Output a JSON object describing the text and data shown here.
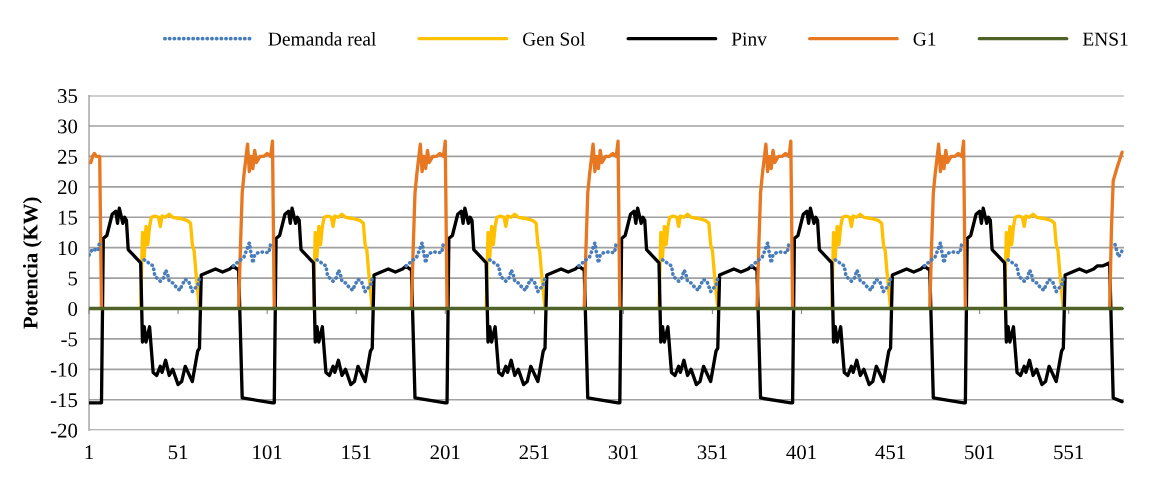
{
  "chart_data": {
    "type": "line",
    "ylabel": "Potencia (KW)",
    "xlim": [
      1,
      582
    ],
    "xticks": [
      1,
      51,
      101,
      151,
      201,
      251,
      301,
      351,
      401,
      451,
      501,
      551
    ],
    "ylim": [
      -20,
      35
    ],
    "yticks": [
      -20,
      -15,
      -10,
      -5,
      0,
      5,
      10,
      15,
      20,
      25,
      30,
      35
    ],
    "grid": "y",
    "legend": "top",
    "series": [
      {
        "name": "Demanda real",
        "color": "#4a7ebb",
        "line_style": "dotted",
        "x": [
          1,
          2,
          3,
          4,
          5,
          6,
          7,
          7.5,
          32,
          35,
          37,
          38,
          41,
          43,
          44,
          45,
          46,
          48,
          50,
          52,
          53,
          55,
          57,
          59,
          61,
          62,
          63,
          70,
          82,
          88,
          90,
          91,
          92,
          93,
          94,
          96,
          98,
          100,
          102,
          103,
          115,
          129,
          132,
          134,
          135,
          138,
          140,
          141,
          142,
          143,
          145,
          147,
          149,
          150,
          152,
          154,
          156,
          158,
          159,
          160,
          170,
          179,
          185,
          187,
          188,
          189,
          190,
          191,
          193,
          195,
          197,
          199,
          200,
          210,
          226,
          229,
          231,
          232,
          235,
          237,
          238,
          239,
          240,
          242,
          244,
          246,
          247,
          249,
          251,
          253,
          255,
          256,
          257,
          270,
          276,
          282,
          284,
          285,
          286,
          287,
          288,
          290,
          292,
          294,
          296,
          297,
          310,
          323,
          326,
          328,
          329,
          332,
          334,
          335,
          336,
          337,
          339,
          341,
          343,
          344,
          346,
          348,
          350,
          352,
          353,
          354,
          365,
          373,
          379,
          381,
          382,
          383,
          384,
          385,
          387,
          389,
          391,
          393,
          394,
          405,
          420,
          423,
          425,
          426,
          429,
          431,
          432,
          433,
          434,
          436,
          438,
          440,
          441,
          443,
          445,
          447,
          449,
          450,
          451,
          460,
          470,
          476,
          478,
          479,
          480,
          481,
          482,
          484,
          486,
          488,
          490,
          491,
          500,
          517,
          520,
          522,
          523,
          526,
          528,
          529,
          530,
          531,
          533,
          535,
          537,
          538,
          540,
          542,
          544,
          546,
          547,
          548,
          560,
          577,
          579,
          581
        ],
        "values": [
          8.8,
          9.3,
          9.8,
          9.7,
          9.6,
          9.5,
          11,
          null,
          8,
          7.4,
          7,
          5.3,
          4.5,
          5.1,
          6.3,
          5.8,
          4.5,
          4.2,
          3.5,
          3,
          3.7,
          4.8,
          4.4,
          2.8,
          3.5,
          3.7,
          5,
          null,
          7,
          8.5,
          10,
          10.8,
          9,
          7.5,
          8.8,
          9.2,
          9.3,
          9.2,
          9.2,
          10.7,
          null,
          8,
          7.4,
          7,
          5.3,
          4.5,
          5.1,
          6.3,
          5.8,
          4.5,
          4.2,
          3.5,
          3,
          3.7,
          4.8,
          4.4,
          2.8,
          3.5,
          3.7,
          5,
          null,
          7,
          8.5,
          10,
          10.8,
          9,
          7.5,
          8.8,
          9.2,
          9.3,
          9.2,
          9.2,
          10.7,
          null,
          8,
          7.4,
          7,
          5.3,
          4.5,
          5.1,
          6.3,
          5.8,
          4.5,
          4.2,
          3.5,
          3,
          3.7,
          4.8,
          4.4,
          2.8,
          3.5,
          3.7,
          5,
          null,
          7,
          8.5,
          10,
          10.8,
          9,
          7.5,
          8.8,
          9.2,
          9.3,
          9.2,
          9.2,
          10.7,
          null,
          8,
          7.4,
          7,
          5.3,
          4.5,
          5.1,
          6.3,
          5.8,
          4.5,
          4.2,
          3.5,
          3,
          3.7,
          4.8,
          4.4,
          2.8,
          3.5,
          3.7,
          5,
          null,
          7,
          8.5,
          10,
          10.8,
          9,
          7.5,
          8.8,
          9.2,
          9.3,
          9.2,
          9.2,
          10.7,
          null,
          8,
          7.4,
          7,
          5.3,
          4.5,
          5.1,
          6.3,
          5.8,
          4.5,
          4.2,
          3.5,
          3,
          3.7,
          4.8,
          4.4,
          2.8,
          3.5,
          3.7,
          5,
          null,
          7,
          8.5,
          10,
          10.8,
          9,
          7.5,
          8.8,
          9.2,
          9.3,
          9.2,
          9.2,
          10.7,
          null,
          8,
          7.4,
          7,
          5.3,
          4.5,
          5.1,
          6.3,
          5.8,
          4.5,
          4.2,
          3.5,
          3,
          3.7,
          4.8,
          4.4,
          2.8,
          3.5,
          3.7,
          5,
          null,
          10.5,
          8.5,
          9.5
        ]
      },
      {
        "name": "Gen Sol",
        "color": "#ffc000",
        "line_style": "solid",
        "x": [
          30,
          31,
          32,
          33,
          34,
          35,
          36,
          38,
          40,
          41,
          42,
          44,
          46,
          48,
          52,
          56,
          58,
          59,
          60,
          61,
          63,
          80,
          127,
          128,
          129,
          130,
          131,
          132,
          133,
          135,
          137,
          138,
          139,
          141,
          143,
          145,
          149,
          153,
          155,
          156,
          157,
          158,
          160,
          180,
          224,
          225,
          226,
          227,
          228,
          229,
          230,
          232,
          234,
          235,
          236,
          238,
          240,
          242,
          246,
          250,
          252,
          253,
          254,
          255,
          257,
          280,
          321,
          322,
          323,
          324,
          325,
          326,
          327,
          329,
          331,
          332,
          333,
          335,
          337,
          339,
          343,
          347,
          349,
          350,
          351,
          352,
          354,
          370,
          418,
          419,
          420,
          421,
          422,
          423,
          424,
          426,
          428,
          429,
          430,
          432,
          434,
          436,
          440,
          444,
          446,
          447,
          448,
          449,
          451,
          470,
          515,
          516,
          517,
          518,
          519,
          520,
          521,
          523,
          525,
          526,
          527,
          529,
          531,
          533,
          537,
          541,
          543,
          544,
          545,
          546,
          548
        ],
        "values": [
          0,
          12.5,
          8.5,
          13.5,
          10.5,
          13.5,
          15,
          15.2,
          15,
          13.5,
          15.2,
          15,
          15.5,
          15,
          14.8,
          14.5,
          14,
          10.5,
          9.5,
          6,
          0,
          null,
          0,
          12.5,
          8.5,
          13.5,
          10.5,
          13.5,
          15,
          15.2,
          15,
          13.5,
          15.2,
          15,
          15.5,
          15,
          14.8,
          14.5,
          14,
          10.5,
          9.5,
          6,
          0,
          null,
          0,
          12.5,
          8.5,
          13.5,
          10.5,
          13.5,
          15,
          15.2,
          15,
          13.5,
          15.2,
          15,
          15.5,
          15,
          14.8,
          14.5,
          14,
          10.5,
          9.5,
          6,
          0,
          null,
          0,
          12.5,
          8.5,
          13.5,
          10.5,
          13.5,
          15,
          15.2,
          15,
          13.5,
          15.2,
          15,
          15.5,
          15,
          14.8,
          14.5,
          14,
          10.5,
          9.5,
          6,
          0,
          null,
          0,
          12.5,
          8.5,
          13.5,
          10.5,
          13.5,
          15,
          15.2,
          15,
          13.5,
          15.2,
          15,
          15.5,
          15,
          14.8,
          14.5,
          14,
          10.5,
          9.5,
          6,
          0,
          null,
          0,
          12.5,
          8.5,
          13.5,
          10.5,
          13.5,
          15,
          15.2,
          15,
          13.5,
          15.2,
          15,
          15.5,
          15,
          14.8,
          14.5,
          14,
          10.5,
          9.5,
          6,
          0
        ]
      },
      {
        "name": "Pinv",
        "color": "#000000",
        "line_style": "solid",
        "x": [
          1,
          8,
          9,
          11,
          14,
          16,
          17,
          18,
          20,
          21,
          22,
          23,
          30,
          31,
          32,
          33,
          35,
          37,
          39,
          41,
          42,
          44,
          46,
          48,
          51,
          53,
          55,
          59,
          62,
          63,
          64,
          68,
          72,
          76,
          80,
          82,
          84,
          85,
          87,
          104,
          105,
          106,
          108,
          111,
          113,
          114,
          115,
          117,
          118,
          119,
          120,
          127,
          128,
          129,
          130,
          132,
          134,
          136,
          138,
          139,
          141,
          143,
          145,
          148,
          150,
          152,
          156,
          159,
          160,
          161,
          165,
          169,
          173,
          177,
          179,
          181,
          182,
          184,
          201,
          202,
          203,
          205,
          208,
          210,
          211,
          212,
          214,
          215,
          216,
          217,
          224,
          225,
          226,
          227,
          229,
          231,
          233,
          235,
          236,
          238,
          240,
          242,
          245,
          247,
          249,
          253,
          256,
          257,
          258,
          262,
          266,
          270,
          274,
          276,
          278,
          279,
          281,
          298,
          299,
          300,
          302,
          305,
          307,
          308,
          309,
          311,
          312,
          313,
          314,
          321,
          322,
          323,
          324,
          326,
          328,
          330,
          332,
          333,
          335,
          337,
          339,
          342,
          344,
          346,
          350,
          353,
          354,
          355,
          359,
          363,
          367,
          371,
          373,
          375,
          376,
          378,
          395,
          396,
          397,
          399,
          402,
          404,
          405,
          406,
          408,
          409,
          410,
          411,
          418,
          419,
          420,
          421,
          423,
          425,
          427,
          429,
          430,
          432,
          434,
          436,
          439,
          441,
          443,
          447,
          450,
          451,
          452,
          456,
          460,
          464,
          468,
          470,
          472,
          473,
          475,
          492,
          493,
          494,
          496,
          499,
          501,
          502,
          503,
          505,
          506,
          507,
          508,
          515,
          516,
          517,
          518,
          520,
          522,
          524,
          526,
          527,
          529,
          531,
          533,
          536,
          538,
          540,
          544,
          547,
          548,
          549,
          553,
          557,
          561,
          565,
          567,
          570,
          574,
          576,
          581
        ],
        "values": [
          -15.5,
          -15.5,
          11.5,
          12,
          15.5,
          16,
          14,
          16.5,
          14,
          15,
          14.5,
          9.7,
          7.5,
          -5.5,
          -3,
          -5.5,
          -3,
          -10.5,
          -11,
          -9.5,
          -10.5,
          -8.5,
          -11,
          -10,
          -12.5,
          -12,
          -9.5,
          -12,
          -7,
          -6.5,
          5.5,
          6,
          6.5,
          6,
          6.5,
          7,
          6.5,
          6.5,
          -14.7,
          -15.5,
          -15.5,
          11.5,
          12,
          15.5,
          16,
          14,
          16.5,
          14,
          15,
          14.5,
          9.7,
          7.5,
          -5.5,
          -3,
          -5.5,
          -3,
          -10.5,
          -11,
          -9.5,
          -10.5,
          -8.5,
          -11,
          -10,
          -12.5,
          -12,
          -9.5,
          -12,
          -7,
          -6.5,
          5.5,
          6,
          6.5,
          6,
          6.5,
          7,
          6.5,
          6.5,
          -14.7,
          -15.5,
          -15.5,
          11.5,
          12,
          15.5,
          16,
          14,
          16.5,
          14,
          15,
          14.5,
          9.7,
          7.5,
          -5.5,
          -3,
          -5.5,
          -3,
          -10.5,
          -11,
          -9.5,
          -10.5,
          -8.5,
          -11,
          -10,
          -12.5,
          -12,
          -9.5,
          -12,
          -7,
          -6.5,
          5.5,
          6,
          6.5,
          6,
          6.5,
          7,
          6.5,
          6.5,
          -14.7,
          -15.5,
          -15.5,
          11.5,
          12,
          15.5,
          16,
          14,
          16.5,
          14,
          15,
          14.5,
          9.7,
          7.5,
          -5.5,
          -3,
          -5.5,
          -3,
          -10.5,
          -11,
          -9.5,
          -10.5,
          -8.5,
          -11,
          -10,
          -12.5,
          -12,
          -9.5,
          -12,
          -7,
          -6.5,
          5.5,
          6,
          6.5,
          6,
          6.5,
          7,
          6.5,
          6.5,
          -14.7,
          -15.5,
          -15.5,
          11.5,
          12,
          15.5,
          16,
          14,
          16.5,
          14,
          15,
          14.5,
          9.7,
          7.5,
          -5.5,
          -3,
          -5.5,
          -3,
          -10.5,
          -11,
          -9.5,
          -10.5,
          -8.5,
          -11,
          -10,
          -12.5,
          -12,
          -9.5,
          -12,
          -7,
          -6.5,
          5.5,
          6,
          6.5,
          6,
          6.5,
          7,
          6.5,
          6.5,
          -14.7,
          -15.5,
          -15.5,
          11.5,
          12,
          15.5,
          16,
          14,
          16.5,
          14,
          15,
          14.5,
          9.7,
          7.5,
          -5.5,
          -3,
          -5.5,
          -3,
          -10.5,
          -11,
          -9.5,
          -10.5,
          -8.5,
          -11,
          -10,
          -12.5,
          -12,
          -9.5,
          -12,
          -7,
          -6.5,
          5.5,
          6,
          6.5,
          6,
          6.5,
          7,
          7,
          7.5,
          -14.7,
          -15.3
        ]
      },
      {
        "name": "G1",
        "color": "#e87722",
        "line_style": "solid",
        "x": [
          1,
          2,
          3,
          4,
          5,
          7,
          8,
          40,
          85,
          86,
          87,
          88,
          90,
          91,
          92,
          93,
          94,
          95,
          97,
          99,
          101,
          103,
          104,
          105,
          140,
          182,
          183,
          184,
          185,
          187,
          188,
          189,
          190,
          191,
          192,
          194,
          196,
          198,
          200,
          201,
          202,
          240,
          279,
          280,
          281,
          282,
          284,
          285,
          286,
          287,
          288,
          289,
          291,
          293,
          295,
          297,
          298,
          299,
          340,
          376,
          377,
          378,
          379,
          381,
          382,
          383,
          384,
          385,
          386,
          388,
          390,
          392,
          394,
          395,
          396,
          440,
          473,
          474,
          475,
          476,
          478,
          479,
          480,
          481,
          482,
          483,
          485,
          487,
          489,
          491,
          492,
          493,
          530,
          574,
          575,
          576,
          578,
          581
        ],
        "values": [
          24,
          24,
          25,
          25.5,
          25,
          25,
          0,
          null,
          0,
          10,
          19,
          22,
          27,
          22.5,
          25,
          23,
          26,
          24,
          25,
          25,
          25.5,
          25,
          27.5,
          0,
          null,
          0,
          10,
          19,
          22,
          27,
          22.5,
          25,
          23,
          26,
          24,
          25,
          25,
          25.5,
          25,
          27.5,
          0,
          null,
          0,
          10,
          19,
          22,
          27,
          22.5,
          25,
          23,
          26,
          24,
          25,
          25,
          25.5,
          25,
          27.5,
          0,
          null,
          0,
          10,
          19,
          22,
          27,
          22.5,
          25,
          23,
          26,
          24,
          25,
          25,
          25.5,
          25,
          27.5,
          0,
          null,
          0,
          10,
          19,
          22,
          27,
          22.5,
          25,
          23,
          26,
          24,
          25,
          25,
          25.5,
          25,
          27.5,
          0,
          null,
          0,
          13,
          21,
          23,
          25.7
        ]
      },
      {
        "name": "ENS1",
        "color": "#4f6228",
        "line_style": "solid",
        "x": [
          1,
          581
        ],
        "values": [
          0,
          0
        ]
      }
    ]
  }
}
